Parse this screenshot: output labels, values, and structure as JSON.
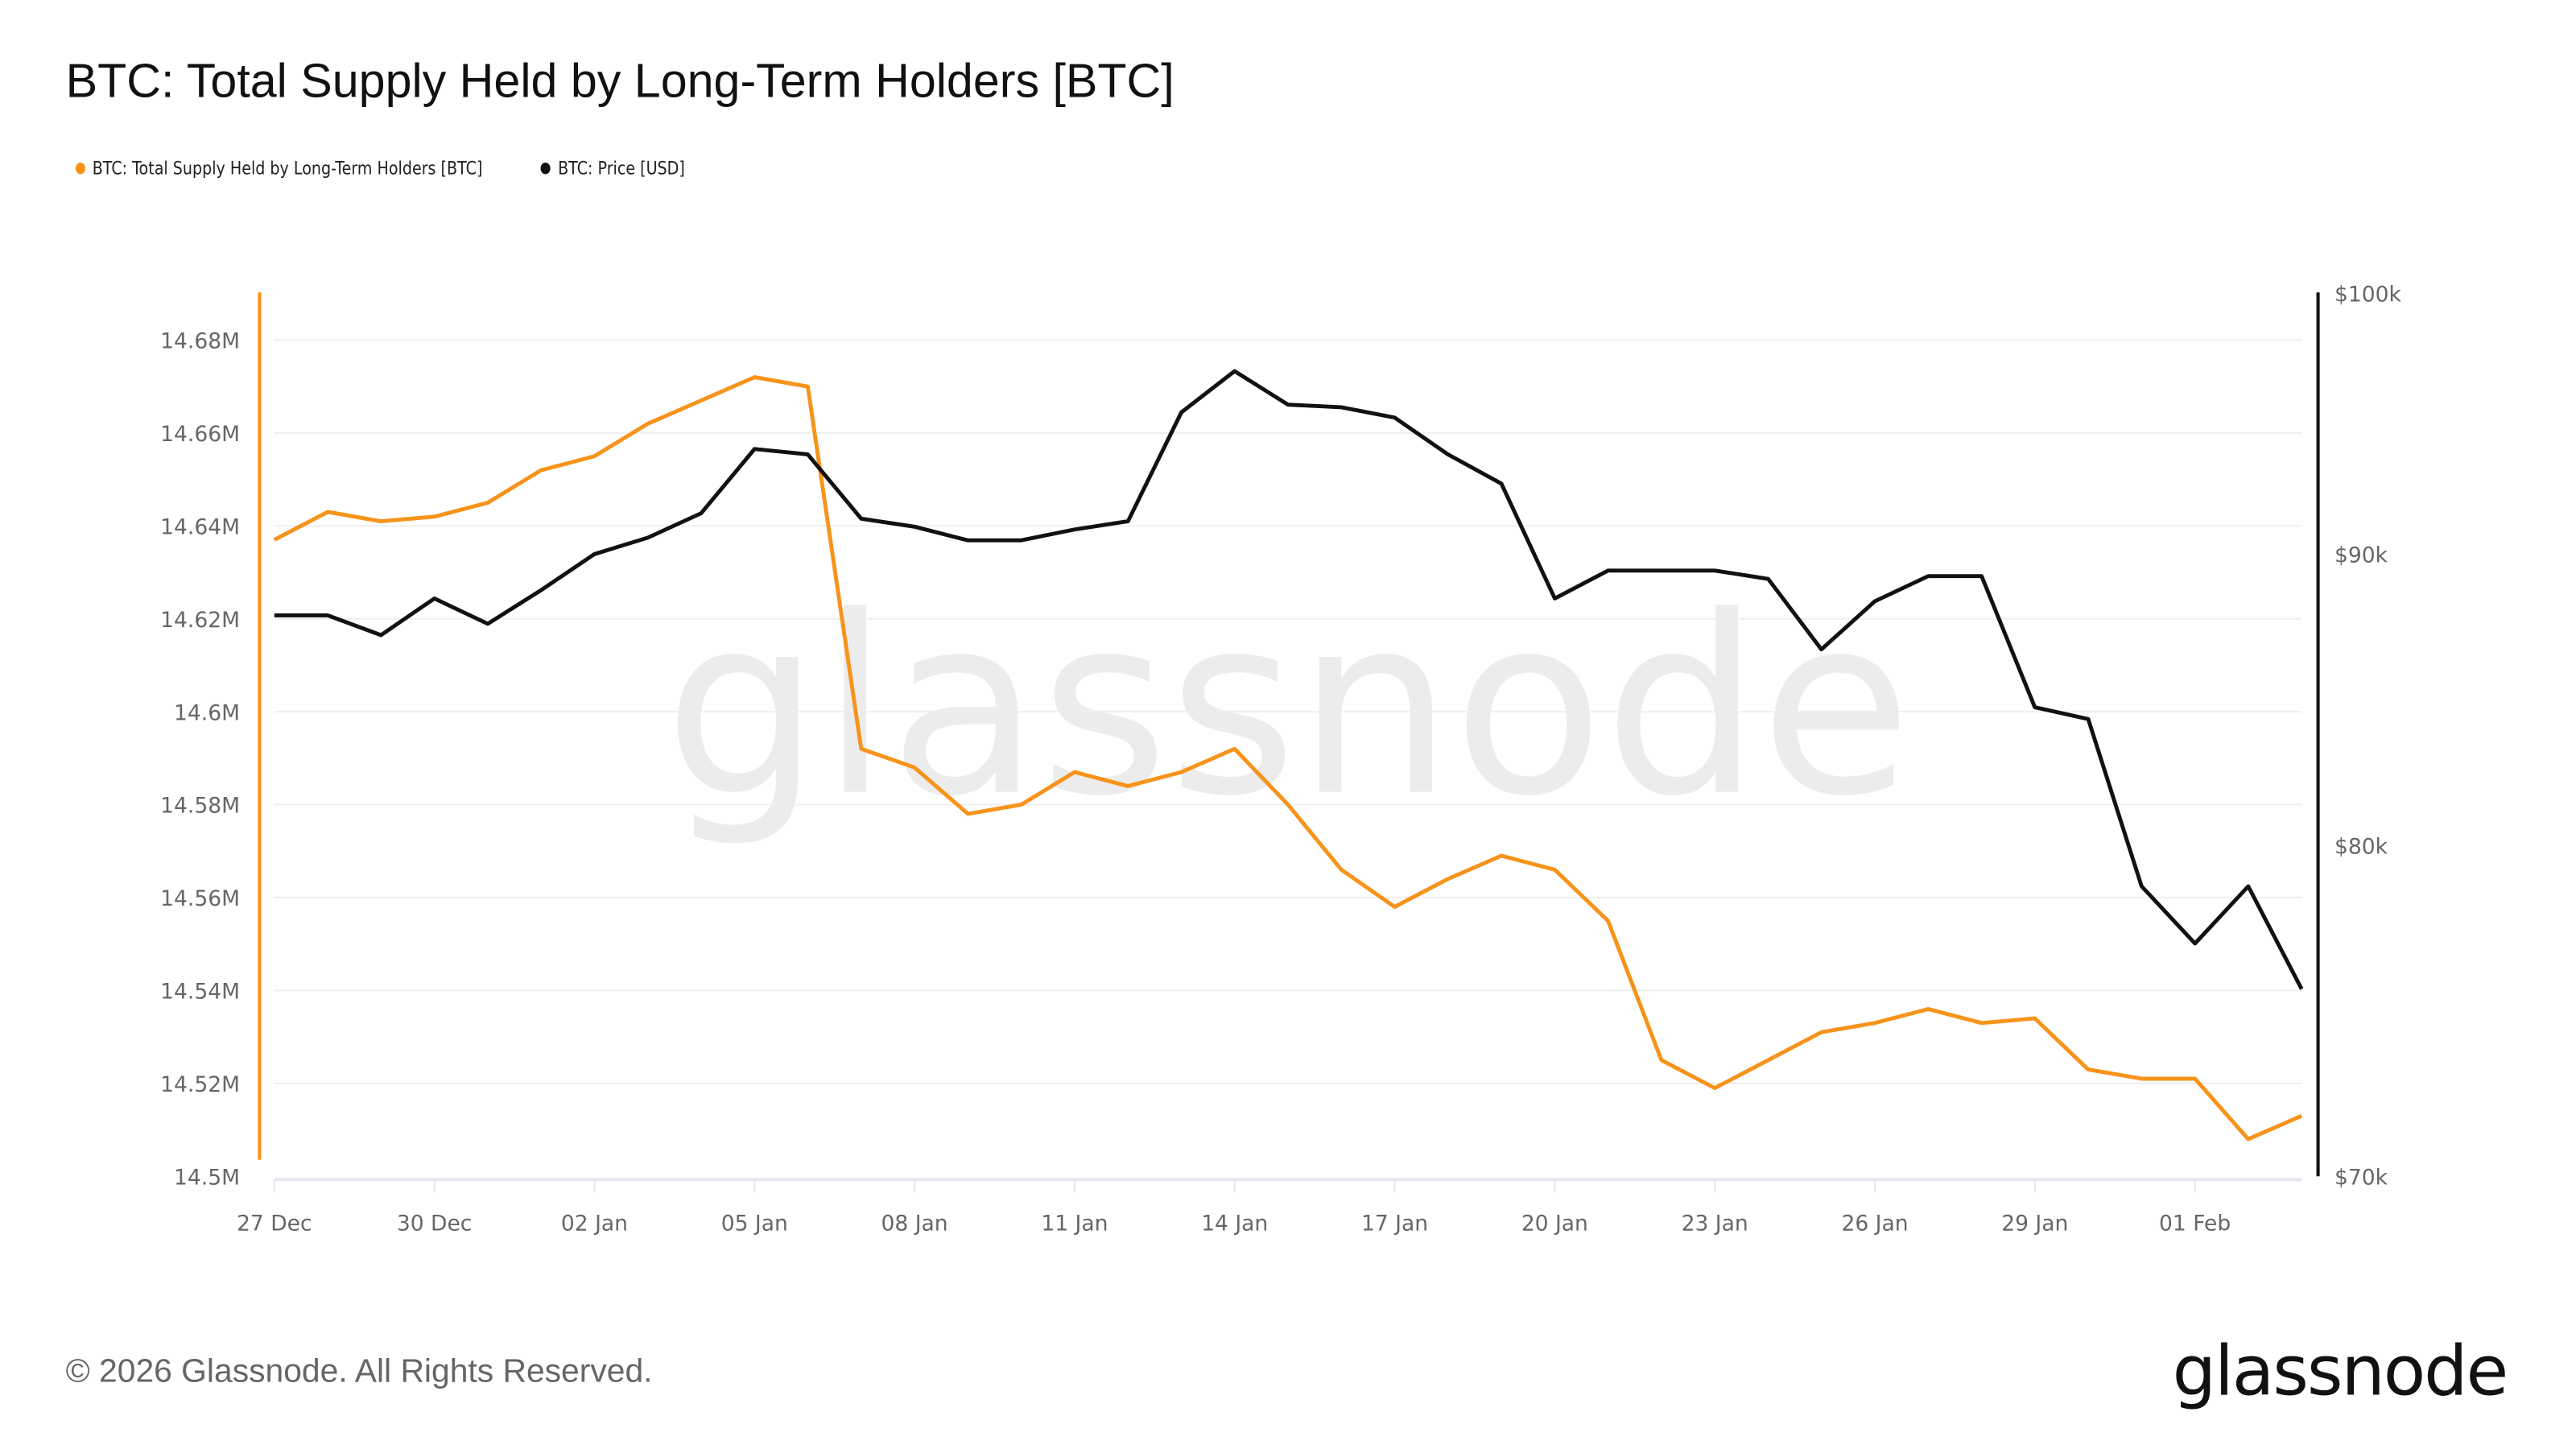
{
  "title": "BTC: Total Supply Held by Long-Term Holders [BTC]",
  "footer": "© 2026 Glassnode. All Rights Reserved.",
  "logo": "glassnode",
  "watermark": "glassnode",
  "chart_data": {
    "type": "line",
    "title": "BTC: Total Supply Held by Long-Term Holders [BTC]",
    "legend_position": "top-left",
    "grid": true,
    "x": [
      "2025-12-27",
      "2025-12-28",
      "2025-12-29",
      "2025-12-30",
      "2025-12-31",
      "2026-01-01",
      "2026-01-02",
      "2026-01-03",
      "2026-01-04",
      "2026-01-05",
      "2026-01-06",
      "2026-01-07",
      "2026-01-08",
      "2026-01-09",
      "2026-01-10",
      "2026-01-11",
      "2026-01-12",
      "2026-01-13",
      "2026-01-14",
      "2026-01-15",
      "2026-01-16",
      "2026-01-17",
      "2026-01-18",
      "2026-01-19",
      "2026-01-20",
      "2026-01-21",
      "2026-01-22",
      "2026-01-23",
      "2026-01-24",
      "2026-01-25",
      "2026-01-26",
      "2026-01-27",
      "2026-01-28",
      "2026-01-29",
      "2026-01-30",
      "2026-01-31",
      "2026-02-01",
      "2026-02-02",
      "2026-02-03"
    ],
    "x_tick_labels": [
      "27 Dec",
      "30 Dec",
      "02 Jan",
      "05 Jan",
      "08 Jan",
      "11 Jan",
      "14 Jan",
      "17 Jan",
      "20 Jan",
      "23 Jan",
      "26 Jan",
      "29 Jan",
      "01 Feb"
    ],
    "y_left": {
      "ylim": [
        14.5,
        14.69
      ],
      "unit": "M BTC",
      "ticks": [
        "14.5M",
        "14.52M",
        "14.54M",
        "14.56M",
        "14.58M",
        "14.6M",
        "14.62M",
        "14.64M",
        "14.66M",
        "14.68M"
      ],
      "tick_values": [
        14.5,
        14.52,
        14.54,
        14.56,
        14.58,
        14.6,
        14.62,
        14.64,
        14.66,
        14.68
      ],
      "color": "#f7931a"
    },
    "y_right": {
      "scale": "log",
      "ylim": [
        70000,
        100000
      ],
      "ticks": [
        "$70k",
        "$80k",
        "$90k",
        "$100k"
      ],
      "tick_values": [
        70000,
        80000,
        90000,
        100000
      ],
      "color": "#111111"
    },
    "series": [
      {
        "name": "BTC: Total Supply Held by Long-Term Holders [BTC]",
        "axis": "left",
        "color": "#f7931a",
        "values": [
          14.637,
          14.643,
          14.641,
          14.642,
          14.645,
          14.652,
          14.655,
          14.662,
          14.667,
          14.672,
          14.67,
          14.592,
          14.588,
          14.578,
          14.58,
          14.587,
          14.584,
          14.587,
          14.592,
          14.58,
          14.566,
          14.558,
          14.564,
          14.569,
          14.566,
          14.555,
          14.525,
          14.519,
          14.525,
          14.531,
          14.533,
          14.536,
          14.533,
          14.534,
          14.523,
          14.521,
          14.521,
          14.508,
          14.513
        ]
      },
      {
        "name": "BTC: Price [USD]",
        "axis": "right",
        "color": "#111111",
        "values": [
          87800,
          87800,
          87100,
          88400,
          87500,
          88700,
          90000,
          90600,
          91500,
          93900,
          93700,
          91300,
          91000,
          90500,
          90500,
          90900,
          91200,
          95300,
          96900,
          95600,
          95500,
          95100,
          93700,
          92600,
          88400,
          89400,
          89400,
          89400,
          89100,
          86600,
          88300,
          89200,
          89200,
          84600,
          84200,
          78700,
          76900,
          78700,
          75500
        ]
      }
    ]
  }
}
